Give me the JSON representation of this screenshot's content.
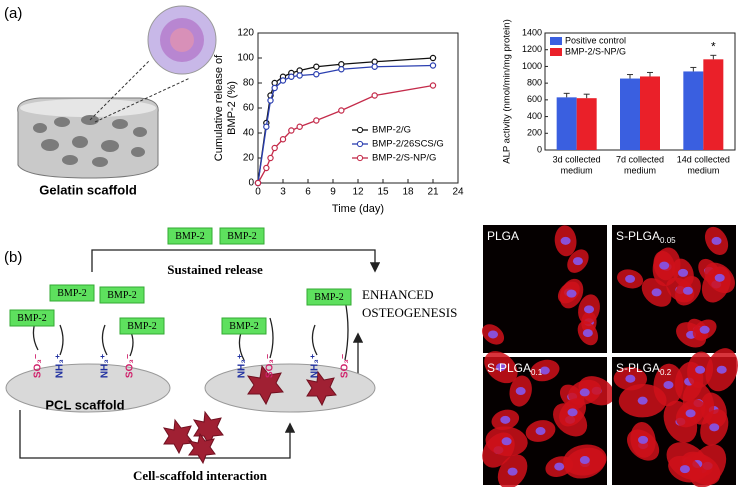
{
  "panel_labels": [
    "(a)",
    "(b)"
  ],
  "scaffold_caption": "Gelatin scaffold",
  "chart_data": [
    {
      "type": "line",
      "xlabel": "Time (day)",
      "ylabel": [
        "Cumulative release of",
        "BMP-2 (%)"
      ],
      "x": [
        0,
        1,
        1.5,
        2,
        3,
        4,
        5,
        7,
        10,
        14,
        21
      ],
      "series": [
        {
          "name": "BMP-2/G",
          "color": "#111111",
          "values": [
            0,
            48,
            70,
            80,
            85,
            88,
            90,
            93,
            95,
            97,
            100
          ]
        },
        {
          "name": "BMP-2/26SCS/G",
          "color": "#2b3fb0",
          "values": [
            0,
            45,
            66,
            76,
            82,
            85,
            86,
            87,
            91,
            93,
            94
          ]
        },
        {
          "name": "BMP-2/S-NP/G",
          "color": "#c42b4a",
          "values": [
            0,
            12,
            20,
            28,
            35,
            42,
            45,
            50,
            58,
            70,
            78
          ]
        }
      ],
      "xlim": [
        0,
        24
      ],
      "xticks": [
        0,
        3,
        6,
        9,
        12,
        15,
        18,
        21,
        24
      ],
      "ylim": [
        0,
        120
      ],
      "yticks": [
        0,
        20,
        40,
        60,
        80,
        100,
        120
      ]
    },
    {
      "type": "bar",
      "ylabel": "ALP activity (nmol/min/mg protein)",
      "categories": [
        [
          "3d collected",
          "medium"
        ],
        [
          "7d collected",
          "medium"
        ],
        [
          "14d collected",
          "medium"
        ]
      ],
      "series": [
        {
          "name": "Positive control",
          "color": "#3a5fe0",
          "values": [
            630,
            855,
            940
          ]
        },
        {
          "name": "BMP-2/S-NP/G",
          "color": "#ea2029",
          "values": [
            620,
            880,
            1085
          ]
        }
      ],
      "ylim": [
        0,
        1400
      ],
      "yticks": [
        0,
        200,
        400,
        600,
        800,
        1000,
        1200,
        1400
      ],
      "annotation": "*"
    }
  ],
  "diagram": {
    "bmp_boxes": [
      "BMP-2",
      "BMP-2",
      "BMP-2",
      "BMP-2",
      "BMP-2",
      "BMP-2",
      "BMP-2",
      "BMP-2"
    ],
    "sustained": "Sustained release",
    "outcome": [
      "ENHANCED",
      "OSTEOGENESIS"
    ],
    "scaffold": "PCL scaffold",
    "interaction": "Cell-scaffold interaction",
    "groups": [
      "SO₃⁻",
      "NH₃⁺",
      "NH₃⁺",
      "SO₃⁻",
      "NH₃⁺",
      "SO₃⁻",
      "NH₃⁺",
      "SO₃⁻"
    ]
  },
  "micrographs": [
    {
      "base": "PLGA"
    },
    {
      "base": "S-PLGA",
      "sub": "0.05"
    },
    {
      "base": "S-PLGA",
      "sub": "0.1"
    },
    {
      "base": "S-PLGA",
      "sub": "0.2"
    }
  ]
}
